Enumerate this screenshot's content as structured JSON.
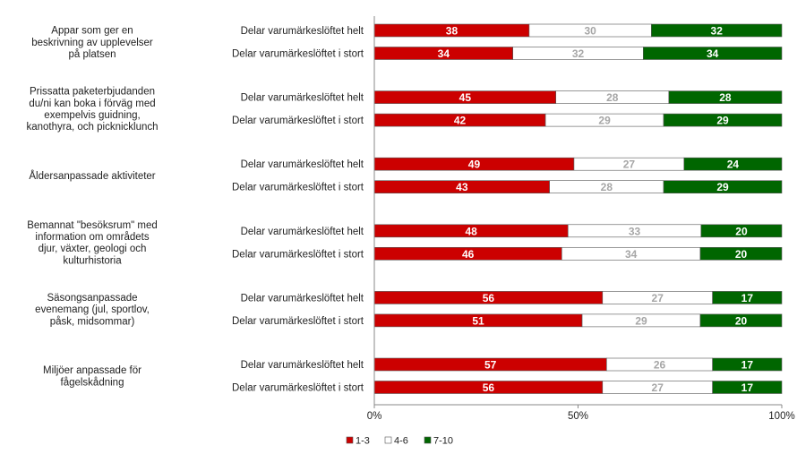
{
  "chart_data": {
    "type": "bar",
    "orientation": "horizontal",
    "stacked": "percent",
    "xlim": [
      0,
      100
    ],
    "x_ticks": [
      "0%",
      "50%",
      "100%"
    ],
    "grid": false,
    "legend_position": "bottom",
    "groups": [
      {
        "label": "Appar som ger en beskrivning av upplevelser på platsen",
        "label_lines": [
          "Appar som ger en",
          "beskrivning av upplevelser",
          "på platsen"
        ],
        "bars": [
          {
            "label": "Delar varumärkeslöftet helt",
            "values": [
              38,
              30,
              32
            ]
          },
          {
            "label": "Delar varumärkeslöftet i stort",
            "values": [
              34,
              32,
              34
            ]
          }
        ]
      },
      {
        "label": "Prissatta paketerbjudanden du/ni kan boka i förväg med exempelvis guidning, kanothyra, och picknicklunch",
        "label_lines": [
          "Prissatta paketerbjudanden",
          "du/ni kan boka i förväg med",
          "exempelvis guidning,",
          "kanothyra, och picknicklunch"
        ],
        "bars": [
          {
            "label": "Delar varumärkeslöftet helt",
            "values": [
              45,
              28,
              28
            ]
          },
          {
            "label": "Delar varumärkeslöftet i stort",
            "values": [
              42,
              29,
              29
            ]
          }
        ]
      },
      {
        "label": "Åldersanpassade aktiviteter",
        "label_lines": [
          "Åldersanpassade aktiviteter"
        ],
        "bars": [
          {
            "label": "Delar varumärkeslöftet helt",
            "values": [
              49,
              27,
              24
            ]
          },
          {
            "label": "Delar varumärkeslöftet i stort",
            "values": [
              43,
              28,
              29
            ]
          }
        ]
      },
      {
        "label": "Bemannat \"besöksrum\" med information om områdets djur, växter, geologi och kulturhistoria",
        "label_lines": [
          "Bemannat \"besöksrum\" med",
          "information om områdets",
          "djur, växter, geologi och",
          "kulturhistoria"
        ],
        "bars": [
          {
            "label": "Delar varumärkeslöftet helt",
            "values": [
              48,
              33,
              20
            ]
          },
          {
            "label": "Delar varumärkeslöftet i stort",
            "values": [
              46,
              34,
              20
            ]
          }
        ]
      },
      {
        "label": "Säsongsanpassade evenemang (jul, sportlov, påsk, midsommar)",
        "label_lines": [
          "Säsongsanpassade",
          "evenemang (jul, sportlov,",
          "påsk, midsommar)"
        ],
        "bars": [
          {
            "label": "Delar varumärkeslöftet helt",
            "values": [
              56,
              27,
              17
            ]
          },
          {
            "label": "Delar varumärkeslöftet i stort",
            "values": [
              51,
              29,
              20
            ]
          }
        ]
      },
      {
        "label": "Miljöer anpassade för fågelskådning",
        "label_lines": [
          "Miljöer anpassade för",
          "fågelskådning"
        ],
        "bars": [
          {
            "label": "Delar varumärkeslöftet helt",
            "values": [
              57,
              26,
              17
            ]
          },
          {
            "label": "Delar varumärkeslöftet i stort",
            "values": [
              56,
              27,
              17
            ]
          }
        ]
      }
    ],
    "series": [
      {
        "name": "1-3",
        "color": "#cc0000",
        "label_color": "#ffffff"
      },
      {
        "name": "4-6",
        "color": "#ffffff",
        "label_color": "#a6a6a6"
      },
      {
        "name": "7-10",
        "color": "#006600",
        "label_color": "#ffffff"
      }
    ]
  }
}
